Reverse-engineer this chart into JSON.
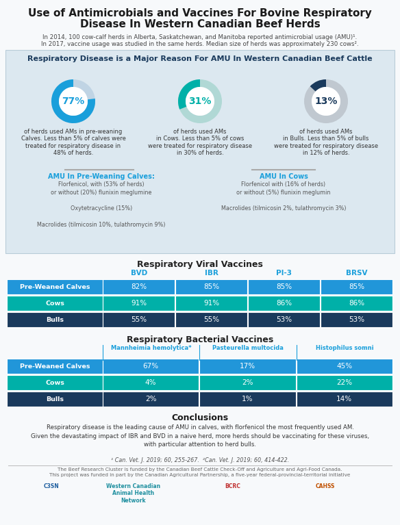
{
  "title_line1": "Use of Antimicrobials and Vaccines For Bovine Respiratory",
  "title_line2": "Disease In Western Canadian Beef Herds",
  "subtitle1": "In 2014, 100 cow-calf herds in Alberta, Saskatchewan, and Manitoba reported antimicrobial usage (AMU)¹.",
  "subtitle2": "In 2017, vaccine usage was studied in the same herds. Median size of herds was approximately 230 cows².",
  "section1_title": "Respiratory Disease is a Major Reason For AMU In Western Canadian Beef Cattle",
  "donut1_pct": 77,
  "donut2_pct": 31,
  "donut3_pct": 13,
  "donut1_color": "#1a9fdb",
  "donut2_color": "#00b0a8",
  "donut3_color": "#1a3a5c",
  "donut_bg_color": "#c8d8e0",
  "donut1_label": "77%",
  "donut2_label": "31%",
  "donut3_label": "13%",
  "desc1": "of herds used AMs in pre-weaning\nCalves. Less than 5% of calves were\ntreated for respiratory disease in\n48% of herds.",
  "desc2": "of herds used AMs\nin Cows. Less than 5% of cows\nwere treated for respiratory disease\nin 30% of herds.",
  "desc3": "of herds used AMs\nin Bulls. Less than 5% of bulls\nwere treated for respiratory disease\nin 12% of herds.",
  "amu_calves_title": "AMU In Pre-Weaning Calves:",
  "amu_calves_lines": [
    "Florfenicol, with (53% of herds)",
    "or without (20%) flunixin meglumine",
    "",
    "Oxytetracycline (15%)",
    "",
    "Macrolides (tilmicosin 10%, tulathromycin 9%)"
  ],
  "amu_cows_title": "AMU In Cows",
  "amu_cows_lines": [
    "Florfenicol with (16% of herds)",
    "or without (5%) flunixin meglumin",
    "",
    "Macrolides (tilmicosin 2%, tulathromycin 3%)"
  ],
  "viral_title": "Respiratory Viral Vaccines",
  "viral_headers": [
    "BVD",
    "IBR",
    "PI-3",
    "BRSV"
  ],
  "viral_rows": [
    [
      "Pre-Weaned Calves",
      "82%",
      "85%",
      "85%",
      "85%"
    ],
    [
      "Cows",
      "91%",
      "91%",
      "86%",
      "86%"
    ],
    [
      "Bulls",
      "55%",
      "55%",
      "53%",
      "53%"
    ]
  ],
  "viral_row_colors": [
    "#2196d9",
    "#00b0a8",
    "#1a3a5c"
  ],
  "bacterial_title": "Respiratory Bacterial Vaccines",
  "bacterial_headers": [
    "Mannheimia hemolytica*",
    "Pasteurella multocida",
    "Histophilus somni"
  ],
  "bacterial_rows": [
    [
      "Pre-Weaned Calves",
      "67%",
      "17%",
      "45%"
    ],
    [
      "Cows",
      "4%",
      "2%",
      "22%"
    ],
    [
      "Bulls",
      "2%",
      "1%",
      "14%"
    ]
  ],
  "bacterial_row_colors": [
    "#2196d9",
    "#00b0a8",
    "#1a3a5c"
  ],
  "conclusions_title": "Conclusions",
  "conclusions_text": "Respiratory disease is the leading cause of AMU in calves, with florfenicol the most frequently used AM.\nGiven the devastating impact of IBR and BVD in a naive herd, more herds should be vaccinating for these viruses,\nwith particular attention to herd bulls.",
  "footnote1": "¹ Can. Vet. J. 2019; 60, 255-267.  ²Can. Vet. J. 2019; 60, 414-422.",
  "footnote2": "The Beef Research Cluster is funded by the Canadian Beef Cattle Check-Off and Agriculture and Agri-Food Canada.\nThis project was funded in part by the Canadian Agricultural Partnership, a five-year federal-provincial-territorial initiative",
  "bg_color": "#f7f9fb",
  "section_bg": "#dce8f0",
  "header_color": "#1a9fdb",
  "teal_color": "#00b0a8",
  "dark_blue": "#1a3a5c",
  "white": "#ffffff"
}
